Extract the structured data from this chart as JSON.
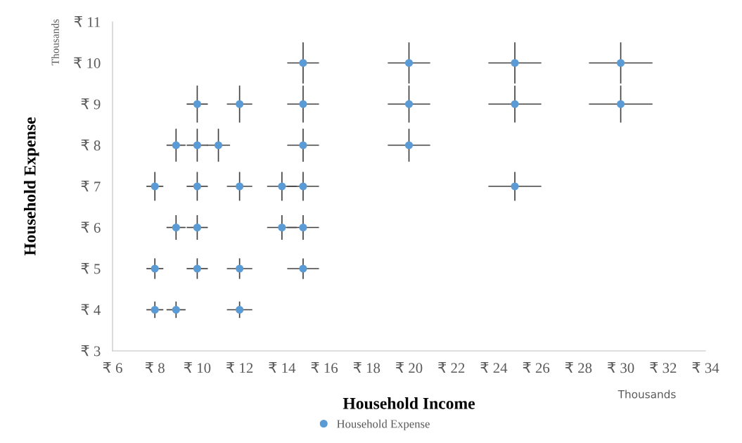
{
  "chart_data": {
    "type": "scatter",
    "xlabel": "Household Income",
    "ylabel": "Household Expense",
    "x": [
      8,
      9,
      12,
      8,
      10,
      12,
      15,
      9,
      10,
      14,
      15,
      8,
      10,
      12,
      14,
      15,
      25,
      9,
      10,
      11,
      15,
      20,
      10,
      12,
      15,
      20,
      25,
      30,
      15,
      20,
      25,
      30
    ],
    "series": [
      {
        "name": "Household Expense",
        "color": "#5b9bd5",
        "values": [
          4,
          4,
          4,
          5,
          5,
          5,
          5,
          6,
          6,
          6,
          6,
          7,
          7,
          7,
          7,
          7,
          7,
          8,
          8,
          8,
          8,
          8,
          9,
          9,
          9,
          9,
          9,
          9,
          10,
          10,
          10,
          10
        ],
        "errors": [
          0.2,
          0.2,
          0.2,
          0.25,
          0.25,
          0.25,
          0.25,
          0.3,
          0.3,
          0.3,
          0.3,
          0.35,
          0.35,
          0.35,
          0.35,
          0.35,
          0.35,
          0.4,
          0.4,
          0.4,
          0.4,
          0.4,
          0.45,
          0.45,
          0.45,
          0.45,
          0.45,
          0.45,
          0.5,
          0.5,
          0.5,
          0.5
        ],
        "xerrors": [
          0.4,
          0.45,
          0.6,
          0.4,
          0.5,
          0.6,
          0.75,
          0.45,
          0.5,
          0.7,
          0.75,
          0.4,
          0.5,
          0.6,
          0.7,
          0.75,
          1.25,
          0.45,
          0.5,
          0.55,
          0.75,
          1,
          0.5,
          0.6,
          0.75,
          1,
          1.25,
          1.5,
          0.75,
          1,
          1.25,
          1.5
        ]
      }
    ],
    "xlim": [
      6,
      34
    ],
    "xticks": [
      {
        "value": 6,
        "label": "₹ 6"
      },
      {
        "value": 8,
        "label": "₹ 8"
      },
      {
        "value": 10,
        "label": "₹ 10"
      },
      {
        "value": 12,
        "label": "₹ 12"
      },
      {
        "value": 14,
        "label": "₹ 14"
      },
      {
        "value": 16,
        "label": "₹ 16"
      },
      {
        "value": 18,
        "label": "₹ 18"
      },
      {
        "value": 20,
        "label": "₹ 20"
      },
      {
        "value": 22,
        "label": "₹ 22"
      },
      {
        "value": 24,
        "label": "₹ 24"
      },
      {
        "value": 26,
        "label": "₹ 26"
      },
      {
        "value": 28,
        "label": "₹ 28"
      },
      {
        "value": 30,
        "label": "₹ 30"
      },
      {
        "value": 32,
        "label": "₹ 32"
      },
      {
        "value": 34,
        "label": "₹ 34"
      }
    ],
    "ylim": [
      3,
      11
    ],
    "yticks": [
      {
        "value": 3,
        "label": "₹ 3"
      },
      {
        "value": 4,
        "label": "₹ 4"
      },
      {
        "value": 5,
        "label": "₹ 5"
      },
      {
        "value": 6,
        "label": "₹ 6"
      },
      {
        "value": 7,
        "label": "₹ 7"
      },
      {
        "value": 8,
        "label": "₹ 8"
      },
      {
        "value": 9,
        "label": "₹ 9"
      },
      {
        "value": 10,
        "label": "₹ 10"
      },
      {
        "value": 11,
        "label": "₹ 11"
      }
    ],
    "annotations": [
      "Thousands",
      "Thousands"
    ],
    "marker": "circle",
    "grid": false,
    "legend": "bottom"
  }
}
